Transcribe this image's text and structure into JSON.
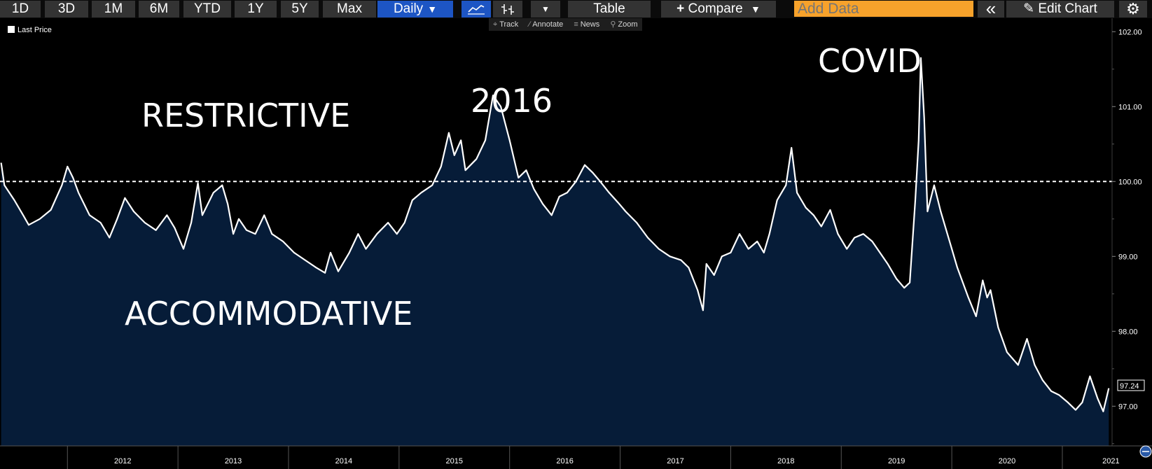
{
  "toolbar": {
    "ranges": [
      "1D",
      "3D",
      "1M",
      "6M",
      "YTD",
      "1Y",
      "5Y",
      "Max"
    ],
    "frequency": "Daily",
    "table_label": "Table",
    "compare_label": "Compare",
    "add_data_placeholder": "Add Data",
    "edit_chart_label": "Edit Chart"
  },
  "subtools": {
    "track": "Track",
    "annotate": "Annotate",
    "news": "News",
    "zoom": "Zoom"
  },
  "colors": {
    "background": "#000000",
    "line": "#ffffff",
    "area_fill": "#061c38",
    "active_button": "#1d55c4",
    "add_data": "#f7a22b"
  },
  "chart_data": {
    "type": "area",
    "series": [
      {
        "name": "Last Price",
        "points": [
          [
            2011.4,
            100.25
          ],
          [
            2011.43,
            99.95
          ],
          [
            2011.52,
            99.75
          ],
          [
            2011.6,
            99.55
          ],
          [
            2011.65,
            99.42
          ],
          [
            2011.75,
            99.5
          ],
          [
            2011.85,
            99.62
          ],
          [
            2011.95,
            99.95
          ],
          [
            2012.0,
            100.2
          ],
          [
            2012.05,
            100.05
          ],
          [
            2012.1,
            99.85
          ],
          [
            2012.2,
            99.55
          ],
          [
            2012.3,
            99.45
          ],
          [
            2012.38,
            99.25
          ],
          [
            2012.45,
            99.5
          ],
          [
            2012.52,
            99.78
          ],
          [
            2012.6,
            99.6
          ],
          [
            2012.7,
            99.45
          ],
          [
            2012.8,
            99.35
          ],
          [
            2012.9,
            99.55
          ],
          [
            2012.97,
            99.38
          ],
          [
            2013.05,
            99.1
          ],
          [
            2013.12,
            99.45
          ],
          [
            2013.18,
            99.98
          ],
          [
            2013.22,
            99.55
          ],
          [
            2013.32,
            99.85
          ],
          [
            2013.4,
            99.95
          ],
          [
            2013.45,
            99.7
          ],
          [
            2013.5,
            99.3
          ],
          [
            2013.55,
            99.5
          ],
          [
            2013.62,
            99.35
          ],
          [
            2013.7,
            99.3
          ],
          [
            2013.78,
            99.55
          ],
          [
            2013.85,
            99.3
          ],
          [
            2013.95,
            99.2
          ],
          [
            2014.05,
            99.05
          ],
          [
            2014.15,
            98.95
          ],
          [
            2014.25,
            98.85
          ],
          [
            2014.33,
            98.78
          ],
          [
            2014.38,
            99.05
          ],
          [
            2014.45,
            98.8
          ],
          [
            2014.55,
            99.05
          ],
          [
            2014.63,
            99.3
          ],
          [
            2014.7,
            99.1
          ],
          [
            2014.8,
            99.3
          ],
          [
            2014.9,
            99.45
          ],
          [
            2014.98,
            99.3
          ],
          [
            2015.05,
            99.45
          ],
          [
            2015.12,
            99.75
          ],
          [
            2015.2,
            99.85
          ],
          [
            2015.3,
            99.95
          ],
          [
            2015.38,
            100.2
          ],
          [
            2015.45,
            100.65
          ],
          [
            2015.5,
            100.35
          ],
          [
            2015.56,
            100.55
          ],
          [
            2015.6,
            100.15
          ],
          [
            2015.7,
            100.3
          ],
          [
            2015.78,
            100.55
          ],
          [
            2015.85,
            101.15
          ],
          [
            2015.92,
            101.0
          ],
          [
            2016.0,
            100.55
          ],
          [
            2016.08,
            100.05
          ],
          [
            2016.15,
            100.15
          ],
          [
            2016.22,
            99.9
          ],
          [
            2016.3,
            99.7
          ],
          [
            2016.38,
            99.55
          ],
          [
            2016.45,
            99.8
          ],
          [
            2016.52,
            99.85
          ],
          [
            2016.6,
            100.0
          ],
          [
            2016.68,
            100.22
          ],
          [
            2016.75,
            100.12
          ],
          [
            2016.82,
            100.0
          ],
          [
            2016.9,
            99.85
          ],
          [
            2016.98,
            99.72
          ],
          [
            2017.05,
            99.6
          ],
          [
            2017.15,
            99.45
          ],
          [
            2017.25,
            99.25
          ],
          [
            2017.35,
            99.1
          ],
          [
            2017.45,
            99.0
          ],
          [
            2017.55,
            98.95
          ],
          [
            2017.62,
            98.85
          ],
          [
            2017.7,
            98.55
          ],
          [
            2017.75,
            98.28
          ],
          [
            2017.78,
            98.9
          ],
          [
            2017.85,
            98.75
          ],
          [
            2017.92,
            99.0
          ],
          [
            2018.0,
            99.05
          ],
          [
            2018.08,
            99.3
          ],
          [
            2018.16,
            99.1
          ],
          [
            2018.24,
            99.2
          ],
          [
            2018.3,
            99.05
          ],
          [
            2018.35,
            99.3
          ],
          [
            2018.42,
            99.75
          ],
          [
            2018.5,
            99.95
          ],
          [
            2018.55,
            100.45
          ],
          [
            2018.6,
            99.85
          ],
          [
            2018.68,
            99.65
          ],
          [
            2018.75,
            99.55
          ],
          [
            2018.82,
            99.4
          ],
          [
            2018.9,
            99.62
          ],
          [
            2018.97,
            99.3
          ],
          [
            2019.05,
            99.1
          ],
          [
            2019.12,
            99.25
          ],
          [
            2019.2,
            99.3
          ],
          [
            2019.28,
            99.2
          ],
          [
            2019.35,
            99.05
          ],
          [
            2019.42,
            98.9
          ],
          [
            2019.5,
            98.7
          ],
          [
            2019.57,
            98.58
          ],
          [
            2019.62,
            98.65
          ],
          [
            2019.67,
            99.75
          ],
          [
            2019.7,
            100.55
          ],
          [
            2019.72,
            101.65
          ],
          [
            2019.75,
            100.85
          ],
          [
            2019.78,
            99.6
          ],
          [
            2019.84,
            99.95
          ],
          [
            2019.9,
            99.6
          ],
          [
            2019.98,
            99.2
          ],
          [
            2020.05,
            98.85
          ],
          [
            2020.15,
            98.45
          ],
          [
            2020.22,
            98.2
          ],
          [
            2020.28,
            98.68
          ],
          [
            2020.32,
            98.45
          ],
          [
            2020.35,
            98.55
          ],
          [
            2020.42,
            98.05
          ],
          [
            2020.5,
            97.72
          ],
          [
            2020.6,
            97.55
          ],
          [
            2020.68,
            97.9
          ],
          [
            2020.75,
            97.55
          ],
          [
            2020.82,
            97.35
          ],
          [
            2020.9,
            97.2
          ],
          [
            2020.97,
            97.15
          ],
          [
            2021.05,
            97.05
          ],
          [
            2021.12,
            96.95
          ],
          [
            2021.18,
            97.05
          ],
          [
            2021.25,
            97.4
          ],
          [
            2021.32,
            97.1
          ],
          [
            2021.37,
            96.93
          ],
          [
            2021.42,
            97.24
          ]
        ]
      }
    ],
    "last_value": "97.24",
    "xlim": [
      2011.39,
      2021.45
    ],
    "ylim": [
      96.47,
      102.18
    ],
    "y_ticks": [
      "102.00",
      "101.00",
      "100.00",
      "99.00",
      "98.00",
      "97.00"
    ],
    "y_tick_values": [
      102,
      101,
      100,
      99,
      98,
      97
    ],
    "x_tick_labels": [
      "2012",
      "2013",
      "2014",
      "2015",
      "2016",
      "2017",
      "2018",
      "2019",
      "2020",
      "2021"
    ],
    "reference_line": 100,
    "annotations": [
      "RESTRICTIVE",
      "ACCOMMODATIVE",
      "2016",
      "COVID"
    ],
    "legend": "top-left",
    "y_axis_position": "right",
    "grid": false
  }
}
